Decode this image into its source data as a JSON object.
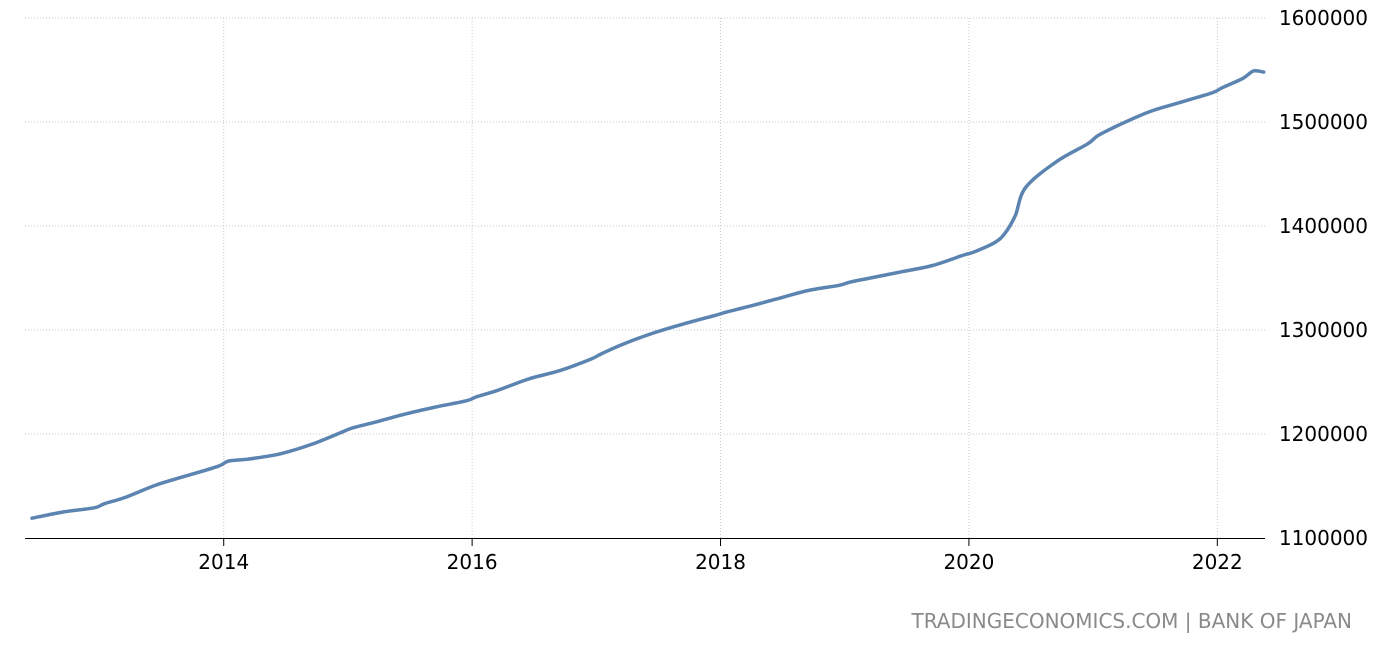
{
  "source": {
    "site": "TRADINGECONOMICS.COM",
    "separator": "|",
    "publisher": "BANK OF JAPAN"
  },
  "colors": {
    "line": "#5b84b1",
    "grid": "#c8c8c8",
    "axis": "#000000",
    "source_text": "#8a8a8a"
  },
  "chart_data": {
    "type": "line",
    "title": "",
    "xlabel": "",
    "ylabel": "",
    "xlim": [
      "2012-06",
      "2022-06"
    ],
    "ylim": [
      1100000,
      1600000
    ],
    "x_ticks": [
      "2014",
      "2016",
      "2018",
      "2020",
      "2022"
    ],
    "y_ticks": [
      "1100000",
      "1200000",
      "1300000",
      "1400000",
      "1500000",
      "1600000"
    ],
    "y_axis_side": "right",
    "grid": true,
    "grid_style": "dotted",
    "legend": "none",
    "series": [
      {
        "x": [
          "2012-06",
          "2012-09",
          "2012-12",
          "2013-01",
          "2013-03",
          "2013-06",
          "2013-09",
          "2013-12",
          "2014-01",
          "2014-03",
          "2014-06",
          "2014-09",
          "2014-12",
          "2015-01",
          "2015-03",
          "2015-06",
          "2015-09",
          "2015-12",
          "2016-01",
          "2016-03",
          "2016-06",
          "2016-09",
          "2016-12",
          "2017-01",
          "2017-03",
          "2017-06",
          "2017-09",
          "2017-12",
          "2018-01",
          "2018-03",
          "2018-06",
          "2018-09",
          "2018-12",
          "2019-01",
          "2019-03",
          "2019-06",
          "2019-09",
          "2019-12",
          "2020-01",
          "2020-03",
          "2020-04",
          "2020-05",
          "2020-06",
          "2020-09",
          "2020-12",
          "2021-01",
          "2021-03",
          "2021-06",
          "2021-09",
          "2021-12",
          "2022-01",
          "2022-03",
          "2022-04",
          "2022-05"
        ],
        "values": [
          1119000,
          1125000,
          1129000,
          1133000,
          1139000,
          1151000,
          1160000,
          1169000,
          1174000,
          1176000,
          1181000,
          1190000,
          1202000,
          1206000,
          1211000,
          1219000,
          1226000,
          1232000,
          1236000,
          1242000,
          1253000,
          1261000,
          1272000,
          1277000,
          1286000,
          1297000,
          1306000,
          1314000,
          1317000,
          1322000,
          1330000,
          1338000,
          1343000,
          1346000,
          1350000,
          1356000,
          1362000,
          1372000,
          1375000,
          1384000,
          1393000,
          1410000,
          1437000,
          1462000,
          1479000,
          1487000,
          1497000,
          1510000,
          1519000,
          1528000,
          1533000,
          1542000,
          1549000,
          1548000
        ]
      }
    ]
  }
}
